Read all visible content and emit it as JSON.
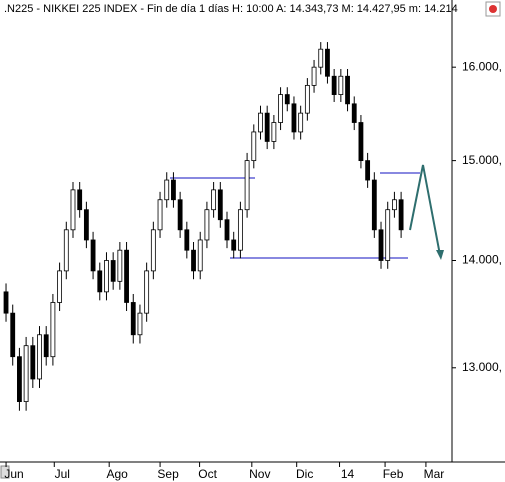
{
  "chart_data": {
    "type": "candlestick",
    "title": ".N225 - NIKKEI 225 INDEX - Fin de día 1 días  H: 10:00  A: 14.343,73  M: 14.427,95  m: 14.214",
    "log_scale": true,
    "up_color": "#ffffff",
    "down_color": "#000000",
    "edge_color": "#000000",
    "open": [
      13700,
      13500,
      13100,
      12700,
      13200,
      12900,
      13300,
      13100,
      13600,
      13900,
      14300,
      14700,
      14500,
      14200,
      13900,
      13700,
      14000,
      13800,
      14100,
      13600,
      13300,
      13500,
      13900,
      14300,
      14600,
      14800,
      14600,
      14300,
      14100,
      13900,
      14200,
      14500,
      14700,
      14400,
      14200,
      14100,
      14500,
      15000,
      15300,
      15500,
      15200,
      15400,
      15700,
      15600,
      15300,
      15500,
      15800,
      16000,
      16200,
      15900,
      15700,
      15900,
      15600,
      15400,
      15000,
      14800,
      14300,
      14000,
      14500,
      14600
    ],
    "high": [
      13780,
      13580,
      13180,
      13280,
      13280,
      13380,
      13380,
      13680,
      13980,
      14380,
      14780,
      14780,
      14580,
      14280,
      13980,
      14080,
      14080,
      14180,
      14180,
      13680,
      13580,
      13980,
      14380,
      14680,
      14880,
      14880,
      14680,
      14380,
      14180,
      14280,
      14580,
      14780,
      14780,
      14480,
      14280,
      14580,
      15080,
      15380,
      15580,
      15580,
      15480,
      15780,
      15780,
      15680,
      15580,
      15880,
      16080,
      16280,
      16280,
      15980,
      15980,
      15980,
      15680,
      15480,
      15080,
      14880,
      14380,
      14580,
      14680,
      14680
    ],
    "low": [
      13420,
      13020,
      12620,
      12620,
      12820,
      12820,
      13020,
      13020,
      13520,
      13820,
      14220,
      14420,
      14120,
      13820,
      13620,
      13620,
      13720,
      13720,
      13520,
      13220,
      13220,
      13420,
      13820,
      14220,
      14520,
      14520,
      14220,
      14020,
      13820,
      13820,
      14120,
      14420,
      14320,
      14120,
      14020,
      14020,
      14420,
      14920,
      15220,
      15120,
      15120,
      15320,
      15520,
      15220,
      15220,
      15420,
      15720,
      15920,
      15820,
      15620,
      15620,
      15520,
      15320,
      14920,
      14720,
      14220,
      13920,
      13920,
      14420,
      14220
    ],
    "close": [
      13500,
      13100,
      12700,
      13200,
      12900,
      13300,
      13100,
      13600,
      13900,
      14300,
      14700,
      14500,
      14200,
      13900,
      13700,
      14000,
      13800,
      14100,
      13600,
      13300,
      13500,
      13900,
      14300,
      14600,
      14800,
      14600,
      14300,
      14100,
      13900,
      14200,
      14500,
      14700,
      14400,
      14200,
      14100,
      14500,
      15000,
      15300,
      15500,
      15200,
      15400,
      15700,
      15600,
      15300,
      15500,
      15800,
      16000,
      16200,
      15900,
      15700,
      15900,
      15600,
      15400,
      15000,
      14800,
      14300,
      14000,
      14500,
      14600,
      14300
    ],
    "xlim": [
      -0.9,
      66.6
    ],
    "xticks": [
      {
        "value": 1.2,
        "label": "Jun"
      },
      {
        "value": 8.4,
        "label": "Jul"
      },
      {
        "value": 16.6,
        "label": "Ago"
      },
      {
        "value": 24.2,
        "label": "Sep"
      },
      {
        "value": 30.1,
        "label": "Oct"
      },
      {
        "value": 37.9,
        "label": "Nov"
      },
      {
        "value": 44.6,
        "label": "Dic"
      },
      {
        "value": 51.0,
        "label": "14"
      },
      {
        "value": 57.8,
        "label": "Feb"
      },
      {
        "value": 63.9,
        "label": "Mar"
      }
    ],
    "ylim": [
      12240,
      16530
    ],
    "yticks": [
      {
        "value": 13000,
        "label": "13.000,"
      },
      {
        "value": 14000,
        "label": "14.000,"
      },
      {
        "value": 15000,
        "label": "15.000,"
      },
      {
        "value": 16000,
        "label": "16.000,"
      }
    ]
  }
}
